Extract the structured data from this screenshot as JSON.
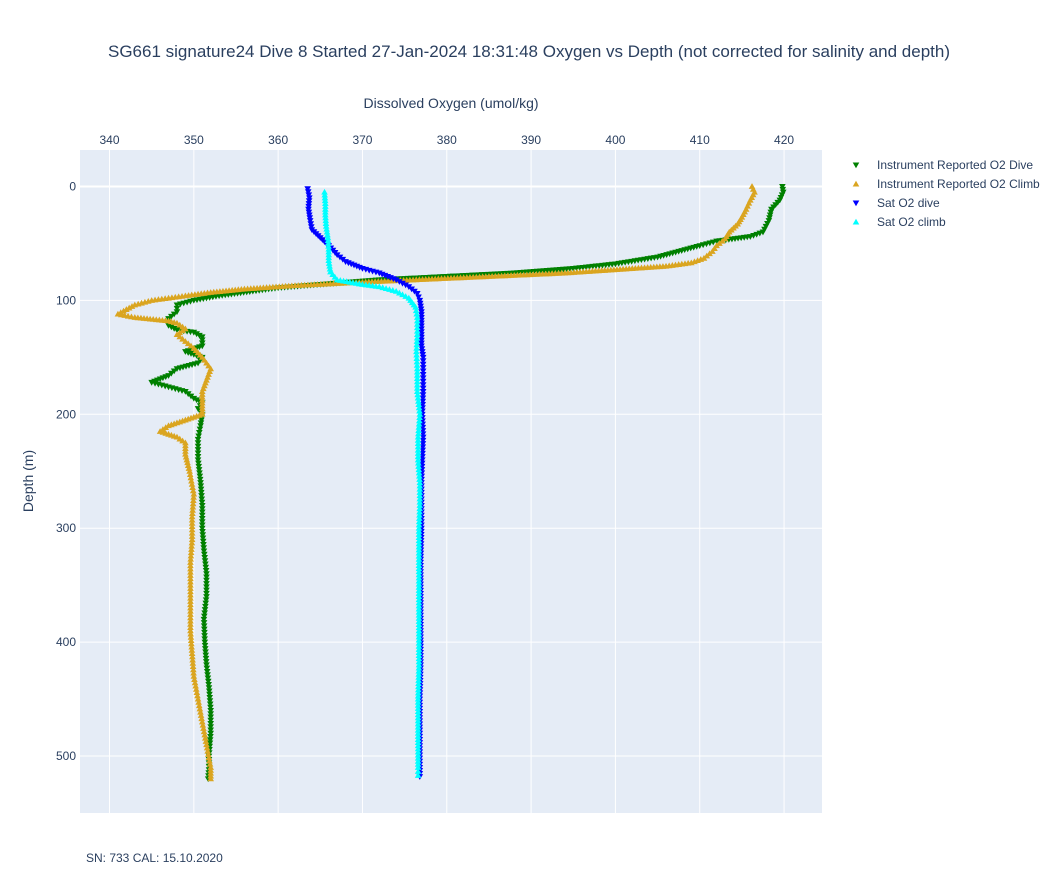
{
  "chart_data": {
    "type": "scatter",
    "title": "SG661 signature24 Dive 8 Started 27-Jan-2024 18:31:48  Oxygen vs Depth (not corrected for salinity and depth)",
    "xlabel": "Dissolved Oxygen (umol/kg)",
    "ylabel": "Depth (m)",
    "xlim": [
      336.5,
      424.5
    ],
    "ylim": [
      550,
      -32
    ],
    "x_axis_side": "top",
    "y_reversed": true,
    "x_ticks": [
      340,
      350,
      360,
      370,
      380,
      390,
      400,
      410,
      420
    ],
    "y_ticks": [
      0,
      100,
      200,
      300,
      400,
      500
    ],
    "grid": true,
    "legend_position": "top-right-outside",
    "series": [
      {
        "name": "Instrument Reported O2 Dive",
        "marker": "triangle-down",
        "color": "#008000",
        "points": [
          [
            419.8,
            0
          ],
          [
            419.9,
            5
          ],
          [
            419.5,
            12
          ],
          [
            418.5,
            20
          ],
          [
            418.2,
            30
          ],
          [
            417.5,
            40
          ],
          [
            416,
            44
          ],
          [
            412,
            48
          ],
          [
            410,
            52
          ],
          [
            405,
            62
          ],
          [
            400,
            68
          ],
          [
            395,
            72
          ],
          [
            388,
            76
          ],
          [
            380,
            79
          ],
          [
            372,
            82
          ],
          [
            365,
            86
          ],
          [
            360,
            89
          ],
          [
            357,
            92
          ],
          [
            353,
            96
          ],
          [
            350,
            100
          ],
          [
            348,
            104
          ],
          [
            348,
            110
          ],
          [
            347,
            116
          ],
          [
            347,
            122
          ],
          [
            348,
            126
          ],
          [
            350,
            128
          ],
          [
            351,
            132
          ],
          [
            351,
            140
          ],
          [
            349,
            145
          ],
          [
            351,
            150
          ],
          [
            350.5,
            155
          ],
          [
            348,
            160
          ],
          [
            347,
            166
          ],
          [
            345,
            172
          ],
          [
            347,
            176
          ],
          [
            349,
            180
          ],
          [
            350,
            186
          ],
          [
            351,
            190
          ],
          [
            350.5,
            195
          ],
          [
            351,
            200
          ],
          [
            350.8,
            210
          ],
          [
            350.5,
            222
          ],
          [
            350.5,
            240
          ],
          [
            350.8,
            260
          ],
          [
            351,
            280
          ],
          [
            351,
            300
          ],
          [
            351.2,
            320
          ],
          [
            351.5,
            340
          ],
          [
            351.5,
            360
          ],
          [
            351.2,
            380
          ],
          [
            351.3,
            400
          ],
          [
            351.5,
            420
          ],
          [
            351.8,
            440
          ],
          [
            352,
            460
          ],
          [
            352,
            480
          ],
          [
            351.8,
            500
          ],
          [
            351.8,
            512
          ],
          [
            351.7,
            520
          ]
        ]
      },
      {
        "name": "Instrument Reported O2 Climb",
        "marker": "triangle-up",
        "color": "#daa520",
        "points": [
          [
            416.2,
            0
          ],
          [
            416.5,
            5
          ],
          [
            416,
            12
          ],
          [
            415.5,
            20
          ],
          [
            415,
            27
          ],
          [
            414.5,
            33
          ],
          [
            413.5,
            40
          ],
          [
            413,
            46
          ],
          [
            412,
            52
          ],
          [
            411.5,
            57
          ],
          [
            410.5,
            63
          ],
          [
            409,
            67
          ],
          [
            406,
            70
          ],
          [
            402,
            72
          ],
          [
            398,
            74
          ],
          [
            394,
            76
          ],
          [
            388,
            78
          ],
          [
            382,
            80
          ],
          [
            376,
            82
          ],
          [
            370,
            84
          ],
          [
            362,
            87
          ],
          [
            356,
            90
          ],
          [
            352,
            93
          ],
          [
            349,
            96
          ],
          [
            347,
            98
          ],
          [
            345,
            100
          ],
          [
            343,
            104
          ],
          [
            342,
            108
          ],
          [
            341,
            112
          ],
          [
            343,
            115
          ],
          [
            347,
            118
          ],
          [
            348,
            120
          ],
          [
            349,
            125
          ],
          [
            348,
            130
          ],
          [
            349,
            136
          ],
          [
            350,
            142
          ],
          [
            351,
            150
          ],
          [
            352,
            160
          ],
          [
            351.5,
            170
          ],
          [
            351,
            180
          ],
          [
            351,
            190
          ],
          [
            351,
            200
          ],
          [
            349,
            205
          ],
          [
            347,
            210
          ],
          [
            346,
            215
          ],
          [
            348,
            220
          ],
          [
            349,
            225
          ],
          [
            349,
            235
          ],
          [
            349.5,
            250
          ],
          [
            350,
            270
          ],
          [
            349.8,
            290
          ],
          [
            349.8,
            310
          ],
          [
            349.6,
            330
          ],
          [
            349.6,
            350
          ],
          [
            349.6,
            370
          ],
          [
            349.6,
            390
          ],
          [
            349.8,
            410
          ],
          [
            350,
            430
          ],
          [
            350.5,
            450
          ],
          [
            351,
            470
          ],
          [
            351.5,
            490
          ],
          [
            352,
            510
          ],
          [
            352,
            520
          ]
        ]
      },
      {
        "name": "Sat O2 dive",
        "marker": "triangle-down",
        "color": "#0000ff",
        "points": [
          [
            363.5,
            2
          ],
          [
            363.7,
            10
          ],
          [
            363.6,
            20
          ],
          [
            363.8,
            30
          ],
          [
            364,
            38
          ],
          [
            365,
            45
          ],
          [
            366,
            52
          ],
          [
            367,
            60
          ],
          [
            368,
            66
          ],
          [
            370,
            72
          ],
          [
            372,
            76
          ],
          [
            374,
            82
          ],
          [
            375.5,
            88
          ],
          [
            376.5,
            94
          ],
          [
            376.8,
            100
          ],
          [
            377,
            110
          ],
          [
            377,
            120
          ],
          [
            377,
            130
          ],
          [
            377,
            140
          ],
          [
            377.2,
            150
          ],
          [
            377.2,
            165
          ],
          [
            377.2,
            180
          ],
          [
            377.1,
            200
          ],
          [
            377.2,
            220
          ],
          [
            377.1,
            240
          ],
          [
            377,
            260
          ],
          [
            377,
            280
          ],
          [
            377,
            300
          ],
          [
            376.9,
            330
          ],
          [
            376.9,
            360
          ],
          [
            376.9,
            390
          ],
          [
            376.9,
            420
          ],
          [
            376.8,
            450
          ],
          [
            376.8,
            480
          ],
          [
            376.8,
            510
          ],
          [
            376.8,
            518
          ]
        ]
      },
      {
        "name": "Sat O2 climb",
        "marker": "triangle-up",
        "color": "#00ffff",
        "points": [
          [
            365.5,
            5
          ],
          [
            365.6,
            15
          ],
          [
            365.6,
            25
          ],
          [
            365.7,
            35
          ],
          [
            365.9,
            45
          ],
          [
            366,
            55
          ],
          [
            366,
            65
          ],
          [
            366.2,
            75
          ],
          [
            367,
            82
          ],
          [
            370,
            86
          ],
          [
            372,
            88
          ],
          [
            374,
            92
          ],
          [
            375.5,
            98
          ],
          [
            376.3,
            106
          ],
          [
            376.5,
            115
          ],
          [
            376.5,
            130
          ],
          [
            376.4,
            145
          ],
          [
            376.5,
            160
          ],
          [
            376.5,
            180
          ],
          [
            376.8,
            200
          ],
          [
            376.6,
            220
          ],
          [
            376.6,
            240
          ],
          [
            376.8,
            260
          ],
          [
            376.8,
            280
          ],
          [
            376.7,
            300
          ],
          [
            376.7,
            330
          ],
          [
            376.7,
            360
          ],
          [
            376.7,
            390
          ],
          [
            376.7,
            420
          ],
          [
            376.6,
            450
          ],
          [
            376.6,
            480
          ],
          [
            376.6,
            510
          ],
          [
            376.6,
            517
          ]
        ]
      }
    ]
  },
  "footer": {
    "note": "SN: 733  CAL: 15.10.2020"
  }
}
